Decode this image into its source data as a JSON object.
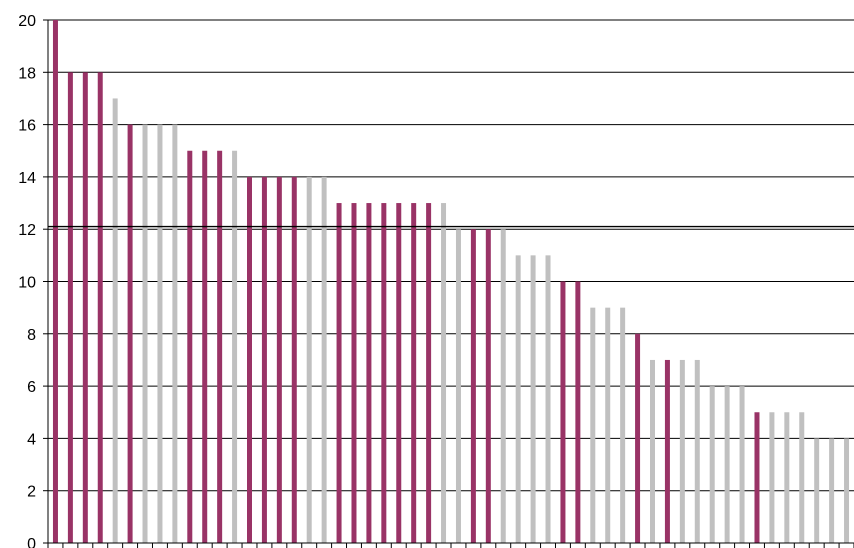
{
  "chart_data": {
    "type": "bar",
    "title": "",
    "xlabel": "",
    "ylabel": "",
    "ylim": [
      0,
      20
    ],
    "yticks": [
      0,
      2,
      4,
      6,
      8,
      10,
      12,
      14,
      16,
      18,
      20
    ],
    "reference_line": 12.1,
    "grid": "horizontal",
    "legend": "none",
    "colors": {
      "highlight": "#993366",
      "other": "#c0c0c0"
    },
    "values": [
      20,
      18,
      18,
      18,
      17,
      16,
      16,
      16,
      16,
      15,
      15,
      15,
      15,
      14,
      14,
      14,
      14,
      14,
      14,
      13,
      13,
      13,
      13,
      13,
      13,
      13,
      13,
      12,
      12,
      12,
      12,
      11,
      11,
      11,
      10,
      10,
      9,
      9,
      9,
      8,
      7,
      7,
      7,
      7,
      6,
      6,
      6,
      5,
      5,
      5,
      5,
      4,
      4,
      4
    ],
    "highlight": [
      1,
      1,
      1,
      1,
      0,
      1,
      0,
      0,
      0,
      1,
      1,
      1,
      0,
      1,
      1,
      1,
      1,
      0,
      0,
      1,
      1,
      1,
      1,
      1,
      1,
      1,
      0,
      0,
      1,
      1,
      0,
      0,
      0,
      0,
      1,
      1,
      0,
      0,
      0,
      1,
      0,
      1,
      0,
      0,
      0,
      0,
      0,
      1,
      0,
      0,
      0,
      0,
      0,
      0
    ]
  }
}
